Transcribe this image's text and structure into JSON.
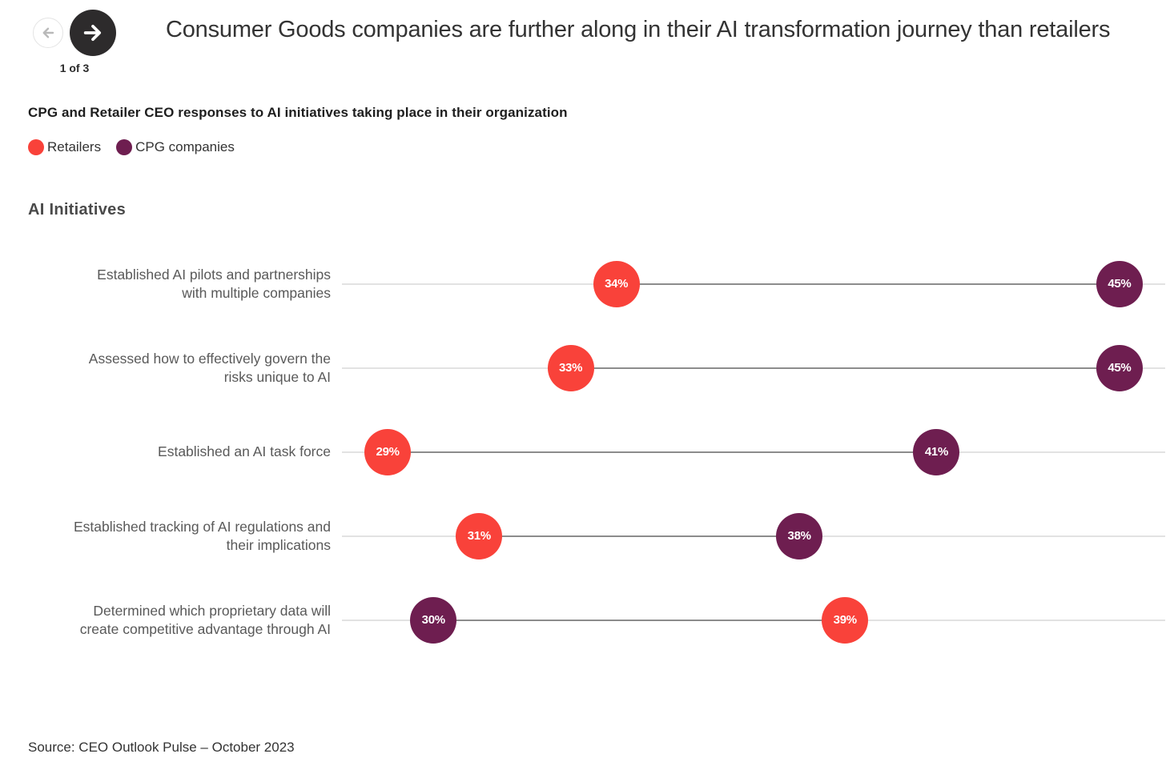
{
  "nav": {
    "page_indicator": "1 of 3",
    "back_icon": "arrow-left",
    "forward_icon": "arrow-right"
  },
  "header": {
    "title": "Consumer Goods companies are further along in their AI transformation journey than retailers"
  },
  "subtitle": "CPG and Retailer CEO responses to AI initiatives taking place in their organization",
  "source": "Source: CEO Outlook Pulse – October 2023",
  "chart_data": {
    "type": "dumbbell",
    "title": "AI Initiatives",
    "categories": [
      "Established AI pilots and partnerships with multiple companies",
      "Assessed how to effectively govern the risks unique to AI",
      "Established an AI task force",
      "Established tracking of AI regulations and their implications",
      "Determined which proprietary data will create competitive advantage through AI"
    ],
    "category_lines": [
      [
        "Established AI pilots and partnerships",
        "with multiple companies"
      ],
      [
        "Assessed how to effectively govern the",
        "risks unique to AI"
      ],
      [
        "Established an AI task force"
      ],
      [
        "Established tracking of AI regulations and",
        "their implications"
      ],
      [
        "Determined which proprietary data will",
        "create competitive advantage through AI"
      ]
    ],
    "series": [
      {
        "name": "Retailers",
        "color": "#F9423A",
        "values": [
          34,
          33,
          29,
          31,
          39
        ]
      },
      {
        "name": "CPG companies",
        "color": "#6E1E50",
        "values": [
          45,
          45,
          41,
          38,
          30
        ]
      }
    ],
    "value_suffix": "%",
    "xlim": [
      28,
      46
    ],
    "grid": true,
    "gridline_color": "#E2E2E2",
    "connector_color": "#8C8C8C",
    "legend_position": "top-left"
  }
}
